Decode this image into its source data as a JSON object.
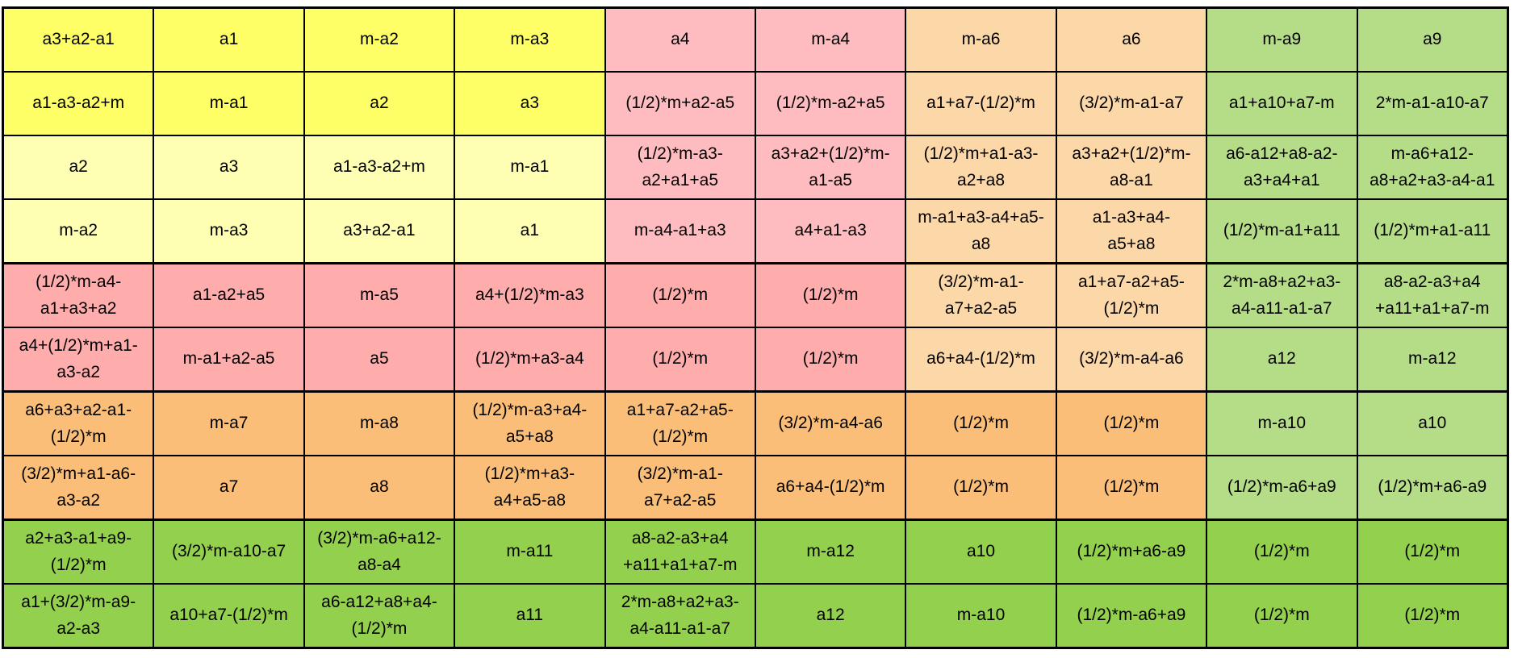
{
  "palette": {
    "y1": "#feff66",
    "y2": "#feffb3",
    "p1": "#ffbcc0",
    "p2": "#ffacac",
    "o1": "#fcd7a7",
    "o2": "#fabe78",
    "g1": "#b5dc87",
    "g2": "#92d04e",
    "grid_border": "#000000",
    "page_background": "#ffffff"
  },
  "matrix": {
    "columns": 10,
    "thick_separator_after_rows": [
      4,
      6,
      8
    ],
    "rows": [
      {
        "cells": [
          {
            "text": "a3+a2-a1",
            "color": "y1"
          },
          {
            "text": "a1",
            "color": "y1"
          },
          {
            "text": "m-a2",
            "color": "y1"
          },
          {
            "text": "m-a3",
            "color": "y1"
          },
          {
            "text": "a4",
            "color": "p1"
          },
          {
            "text": "m-a4",
            "color": "p1"
          },
          {
            "text": "m-a6",
            "color": "o1"
          },
          {
            "text": "a6",
            "color": "o1"
          },
          {
            "text": "m-a9",
            "color": "g1"
          },
          {
            "text": "a9",
            "color": "g1"
          }
        ]
      },
      {
        "cells": [
          {
            "text": "a1-a3-a2+m",
            "color": "y1"
          },
          {
            "text": "m-a1",
            "color": "y1"
          },
          {
            "text": "a2",
            "color": "y1"
          },
          {
            "text": "a3",
            "color": "y1"
          },
          {
            "text": "(1/2)*m+a2-a5",
            "color": "p1"
          },
          {
            "text": "(1/2)*m-a2+a5",
            "color": "p1"
          },
          {
            "text": "a1+a7-(1/2)*m",
            "color": "o1"
          },
          {
            "text": "(3/2)*m-a1-a7",
            "color": "o1"
          },
          {
            "text": "a1+a10+a7-m",
            "color": "g1"
          },
          {
            "text": "2*m-a1-a10-a7",
            "color": "g1"
          }
        ]
      },
      {
        "cells": [
          {
            "text": "a2",
            "color": "y2"
          },
          {
            "text": "a3",
            "color": "y2"
          },
          {
            "text": "a1-a3-a2+m",
            "color": "y2"
          },
          {
            "text": "m-a1",
            "color": "y2"
          },
          {
            "text": "(1/2)*m-a3-\na2+a1+a5",
            "color": "p1"
          },
          {
            "text": "a3+a2+(1/2)*m-\na1-a5",
            "color": "p1"
          },
          {
            "text": "(1/2)*m+a1-a3-\na2+a8",
            "color": "o1"
          },
          {
            "text": "a3+a2+(1/2)*m-\na8-a1",
            "color": "o1"
          },
          {
            "text": "a6-a12+a8-a2-\na3+a4+a1",
            "color": "g1"
          },
          {
            "text": "m-a6+a12-\na8+a2+a3-a4-a1",
            "color": "g1"
          }
        ]
      },
      {
        "cells": [
          {
            "text": "m-a2",
            "color": "y2"
          },
          {
            "text": "m-a3",
            "color": "y2"
          },
          {
            "text": "a3+a2-a1",
            "color": "y2"
          },
          {
            "text": "a1",
            "color": "y2"
          },
          {
            "text": "m-a4-a1+a3",
            "color": "p1"
          },
          {
            "text": "a4+a1-a3",
            "color": "p1"
          },
          {
            "text": "m-a1+a3-a4+a5-\na8",
            "color": "o1"
          },
          {
            "text": "a1-a3+a4-\na5+a8",
            "color": "o1"
          },
          {
            "text": "(1/2)*m-a1+a11",
            "color": "g1"
          },
          {
            "text": "(1/2)*m+a1-a11",
            "color": "g1"
          }
        ]
      },
      {
        "cells": [
          {
            "text": "(1/2)*m-a4-\na1+a3+a2",
            "color": "p2"
          },
          {
            "text": "a1-a2+a5",
            "color": "p2"
          },
          {
            "text": "m-a5",
            "color": "p2"
          },
          {
            "text": "a4+(1/2)*m-a3",
            "color": "p2"
          },
          {
            "text": "(1/2)*m",
            "color": "p2"
          },
          {
            "text": "(1/2)*m",
            "color": "p2"
          },
          {
            "text": "(3/2)*m-a1-\na7+a2-a5",
            "color": "o1"
          },
          {
            "text": "a1+a7-a2+a5-\n(1/2)*m",
            "color": "o1"
          },
          {
            "text": "2*m-a8+a2+a3-\na4-a11-a1-a7",
            "color": "g1"
          },
          {
            "text": "a8-a2-a3+a4\n+a11+a1+a7-m",
            "color": "g1"
          }
        ]
      },
      {
        "cells": [
          {
            "text": "a4+(1/2)*m+a1-\na3-a2",
            "color": "p2"
          },
          {
            "text": "m-a1+a2-a5",
            "color": "p2"
          },
          {
            "text": "a5",
            "color": "p2"
          },
          {
            "text": "(1/2)*m+a3-a4",
            "color": "p2"
          },
          {
            "text": "(1/2)*m",
            "color": "p2"
          },
          {
            "text": "(1/2)*m",
            "color": "p2"
          },
          {
            "text": "a6+a4-(1/2)*m",
            "color": "o1"
          },
          {
            "text": "(3/2)*m-a4-a6",
            "color": "o1"
          },
          {
            "text": "a12",
            "color": "g1"
          },
          {
            "text": "m-a12",
            "color": "g1"
          }
        ]
      },
      {
        "cells": [
          {
            "text": "a6+a3+a2-a1-\n(1/2)*m",
            "color": "o2"
          },
          {
            "text": "m-a7",
            "color": "o2"
          },
          {
            "text": "m-a8",
            "color": "o2"
          },
          {
            "text": "(1/2)*m-a3+a4-\na5+a8",
            "color": "o2"
          },
          {
            "text": "a1+a7-a2+a5-\n(1/2)*m",
            "color": "o2"
          },
          {
            "text": "(3/2)*m-a4-a6",
            "color": "o2"
          },
          {
            "text": "(1/2)*m",
            "color": "o2"
          },
          {
            "text": "(1/2)*m",
            "color": "o2"
          },
          {
            "text": "m-a10",
            "color": "g1"
          },
          {
            "text": "a10",
            "color": "g1"
          }
        ]
      },
      {
        "cells": [
          {
            "text": "(3/2)*m+a1-a6-\na3-a2",
            "color": "o2"
          },
          {
            "text": "a7",
            "color": "o2"
          },
          {
            "text": "a8",
            "color": "o2"
          },
          {
            "text": "(1/2)*m+a3-\na4+a5-a8",
            "color": "o2"
          },
          {
            "text": "(3/2)*m-a1-\na7+a2-a5",
            "color": "o2"
          },
          {
            "text": "a6+a4-(1/2)*m",
            "color": "o2"
          },
          {
            "text": "(1/2)*m",
            "color": "o2"
          },
          {
            "text": "(1/2)*m",
            "color": "o2"
          },
          {
            "text": "(1/2)*m-a6+a9",
            "color": "g1"
          },
          {
            "text": "(1/2)*m+a6-a9",
            "color": "g1"
          }
        ]
      },
      {
        "cells": [
          {
            "text": "a2+a3-a1+a9-\n(1/2)*m",
            "color": "g2"
          },
          {
            "text": "(3/2)*m-a10-a7",
            "color": "g2"
          },
          {
            "text": "(3/2)*m-a6+a12-\na8-a4",
            "color": "g2"
          },
          {
            "text": "m-a11",
            "color": "g2"
          },
          {
            "text": "a8-a2-a3+a4\n+a11+a1+a7-m",
            "color": "g2"
          },
          {
            "text": "m-a12",
            "color": "g2"
          },
          {
            "text": "a10",
            "color": "g2"
          },
          {
            "text": "(1/2)*m+a6-a9",
            "color": "g2"
          },
          {
            "text": "(1/2)*m",
            "color": "g2"
          },
          {
            "text": "(1/2)*m",
            "color": "g2"
          }
        ]
      },
      {
        "cells": [
          {
            "text": "a1+(3/2)*m-a9-\na2-a3",
            "color": "g2"
          },
          {
            "text": "a10+a7-(1/2)*m",
            "color": "g2"
          },
          {
            "text": "a6-a12+a8+a4-\n(1/2)*m",
            "color": "g2"
          },
          {
            "text": "a11",
            "color": "g2"
          },
          {
            "text": "2*m-a8+a2+a3-\na4-a11-a1-a7",
            "color": "g2"
          },
          {
            "text": "a12",
            "color": "g2"
          },
          {
            "text": "m-a10",
            "color": "g2"
          },
          {
            "text": "(1/2)*m-a6+a9",
            "color": "g2"
          },
          {
            "text": "(1/2)*m",
            "color": "g2"
          },
          {
            "text": "(1/2)*m",
            "color": "g2"
          }
        ]
      }
    ]
  }
}
